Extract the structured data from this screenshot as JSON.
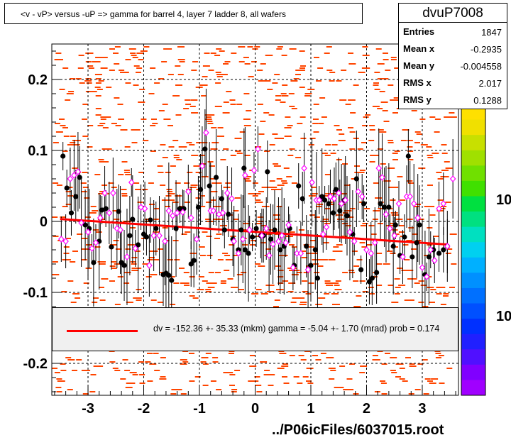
{
  "header": {
    "title": "<v - vP>       versus  -uP =>  gamma for barrel 4, layer 7 ladder 8, all wafers"
  },
  "stats": {
    "name": "dvuP7008",
    "rows": [
      {
        "label": "Entries",
        "value": "1847"
      },
      {
        "label": "Mean x",
        "value": "-0.2935"
      },
      {
        "label": "Mean y",
        "value": "-0.004558"
      },
      {
        "label": "RMS x",
        "value": "2.017"
      },
      {
        "label": "RMS y",
        "value": "0.1288"
      }
    ]
  },
  "legend": {
    "text": "dv = -152.36 +- 35.33 (mkm) gamma =   -5.04 +-  1.70 (mrad) prob = 0.174",
    "line_color": "#ff0000"
  },
  "footer": {
    "filename": "../P06icFiles/6037015.root"
  },
  "colorbar": {
    "labels": [
      "10",
      "10"
    ]
  },
  "colors": {
    "histogram_cells": "#ff4500",
    "profile_black": "#000000",
    "profile_magenta": "#ff00ff",
    "fit_line": "#ff0000",
    "grid": "#000000"
  },
  "chart_data": {
    "type": "scatter",
    "xlim": [
      -3.65,
      3.65
    ],
    "ylim": [
      -0.245,
      0.25
    ],
    "x_ticks": [
      -3,
      -2,
      -1,
      0,
      1,
      2,
      3
    ],
    "y_ticks": [
      -0.2,
      -0.1,
      0,
      0.1,
      0.2
    ],
    "y_tick_labels": [
      "-0.2",
      "-0.1",
      "0",
      "0.1",
      "0.2"
    ],
    "x_tick_labels": [
      "-3",
      "-2",
      "-1",
      "0",
      "1",
      "2",
      "3"
    ],
    "grid": true,
    "fit": {
      "x": [
        -3.5,
        3.45
      ],
      "y": [
        0.0034,
        -0.0325
      ]
    },
    "series": [
      {
        "marker": "filled-circle",
        "points": [
          [
            -3.45,
            0.092
          ],
          [
            -3.38,
            0.047
          ],
          [
            -3.3,
            0.012
          ],
          [
            -3.22,
            0.035
          ],
          [
            -3.15,
            0.062
          ],
          [
            -3.05,
            -0.005
          ],
          [
            -2.98,
            -0.01
          ],
          [
            -2.9,
            -0.058
          ],
          [
            -2.8,
            -0.028
          ],
          [
            -2.75,
            0.016
          ],
          [
            -2.68,
            0.018
          ],
          [
            -2.58,
            -0.036
          ],
          [
            -2.45,
            0.014
          ],
          [
            -2.4,
            -0.058
          ],
          [
            -2.35,
            -0.062
          ],
          [
            -2.25,
            -0.02
          ],
          [
            -2.2,
            0.003
          ],
          [
            -2.1,
            -0.033
          ],
          [
            -2.0,
            -0.018
          ],
          [
            -1.95,
            -0.022
          ],
          [
            -1.88,
            0.002
          ],
          [
            -1.78,
            -0.01
          ],
          [
            -1.65,
            -0.075
          ],
          [
            -1.6,
            -0.073
          ],
          [
            -1.55,
            -0.076
          ],
          [
            -1.5,
            -0.083
          ],
          [
            -1.42,
            -0.01
          ],
          [
            -1.35,
            0.018
          ],
          [
            -1.28,
            0.018
          ],
          [
            -1.15,
            -0.06
          ],
          [
            -1.1,
            -0.055
          ],
          [
            -1.02,
            0.02
          ],
          [
            -0.98,
            0.045
          ],
          [
            -0.9,
            0.102
          ],
          [
            -0.82,
            0.05
          ],
          [
            -0.7,
            0.062
          ],
          [
            -0.6,
            0.032
          ],
          [
            -0.55,
            -0.012
          ],
          [
            -0.48,
            0.01
          ],
          [
            -0.4,
            -0.025
          ],
          [
            -0.3,
            -0.04
          ],
          [
            -0.25,
            -0.012
          ],
          [
            -0.2,
            0.075
          ],
          [
            -0.18,
            -0.04
          ],
          [
            -0.12,
            -0.045
          ],
          [
            -0.05,
            -0.022
          ],
          [
            0.02,
            -0.01
          ],
          [
            0.1,
            -0.02
          ],
          [
            0.15,
            -0.02
          ],
          [
            0.22,
            0.07
          ],
          [
            0.28,
            -0.025
          ],
          [
            0.35,
            -0.012
          ],
          [
            0.45,
            -0.04
          ],
          [
            0.52,
            -0.035
          ],
          [
            0.62,
            -0.01
          ],
          [
            0.7,
            -0.062
          ],
          [
            0.78,
            0.05
          ],
          [
            0.85,
            0.032
          ],
          [
            0.92,
            -0.035
          ],
          [
            1.0,
            -0.062
          ],
          [
            1.08,
            -0.04
          ],
          [
            1.12,
            -0.08
          ],
          [
            1.2,
            0.035
          ],
          [
            1.25,
            0.03
          ],
          [
            1.32,
            0.025
          ],
          [
            1.4,
            0.012
          ],
          [
            1.45,
            0.045
          ],
          [
            1.52,
            0.015
          ],
          [
            1.6,
            0.03
          ],
          [
            1.65,
            0.008
          ],
          [
            1.75,
            -0.018
          ],
          [
            1.82,
            0.06
          ],
          [
            1.9,
            -0.068
          ],
          [
            1.95,
            0.025
          ],
          [
            2.05,
            -0.085
          ],
          [
            2.1,
            -0.08
          ],
          [
            2.18,
            -0.072
          ],
          [
            2.25,
            0.025
          ],
          [
            2.32,
            0.02
          ],
          [
            2.4,
            0.02
          ],
          [
            2.48,
            -0.035
          ],
          [
            2.52,
            -0.005
          ],
          [
            2.6,
            -0.048
          ],
          [
            2.68,
            -0.022
          ],
          [
            2.75,
            0.092
          ],
          [
            2.82,
            -0.05
          ],
          [
            2.9,
            -0.03
          ],
          [
            2.95,
            -0.005
          ],
          [
            3.05,
            -0.075
          ],
          [
            3.12,
            -0.05
          ],
          [
            3.2,
            -0.04
          ],
          [
            3.3,
            -0.045
          ],
          [
            3.38,
            -0.04
          ],
          [
            3.45,
            -0.035
          ]
        ]
      },
      {
        "marker": "open-diamond",
        "points": [
          [
            -3.48,
            -0.025
          ],
          [
            -3.4,
            -0.028
          ],
          [
            -3.32,
            0.06
          ],
          [
            -3.25,
            0.065
          ],
          [
            -3.18,
            0.07
          ],
          [
            -3.12,
            -0.002
          ],
          [
            -3.0,
            -0.015
          ],
          [
            -2.93,
            -0.038
          ],
          [
            -2.86,
            -0.03
          ],
          [
            -2.78,
            0.005
          ],
          [
            -2.7,
            0.04
          ],
          [
            -2.62,
            0.012
          ],
          [
            -2.55,
            0.04
          ],
          [
            -2.48,
            -0.01
          ],
          [
            -2.42,
            -0.012
          ],
          [
            -2.3,
            -0.05
          ],
          [
            -2.22,
            0.055
          ],
          [
            -2.15,
            -0.038
          ],
          [
            -2.05,
            0.02
          ],
          [
            -1.98,
            0.018
          ],
          [
            -1.9,
            -0.062
          ],
          [
            -1.82,
            -0.02
          ],
          [
            -1.72,
            -0.02
          ],
          [
            -1.62,
            -0.028
          ],
          [
            -1.55,
            0.015
          ],
          [
            -1.48,
            0.008
          ],
          [
            -1.4,
            0.012
          ],
          [
            -1.3,
            0.013
          ],
          [
            -1.2,
            0.042
          ],
          [
            -1.15,
            0.005
          ],
          [
            -1.05,
            -0.025
          ],
          [
            -0.95,
            0.078
          ],
          [
            -0.88,
            0.125
          ],
          [
            -0.8,
            0.015
          ],
          [
            -0.75,
            0.015
          ],
          [
            -0.65,
            0.01
          ],
          [
            -0.58,
            0.012
          ],
          [
            -0.5,
            0.04
          ],
          [
            -0.42,
            0.032
          ],
          [
            -0.38,
            -0.028
          ],
          [
            -0.3,
            -0.045
          ],
          [
            -0.22,
            -0.025
          ],
          [
            -0.18,
            0.065
          ],
          [
            -0.1,
            -0.012
          ],
          [
            -0.02,
            0.072
          ],
          [
            0.05,
            0.102
          ],
          [
            0.12,
            -0.02
          ],
          [
            0.2,
            -0.01
          ],
          [
            0.25,
            -0.048
          ],
          [
            0.32,
            -0.032
          ],
          [
            0.42,
            -0.028
          ],
          [
            0.48,
            -0.02
          ],
          [
            0.55,
            -0.03
          ],
          [
            0.6,
            -0.005
          ],
          [
            0.68,
            -0.065
          ],
          [
            0.75,
            -0.045
          ],
          [
            0.82,
            -0.045
          ],
          [
            0.88,
            0.075
          ],
          [
            0.95,
            -0.068
          ],
          [
            1.02,
            0.055
          ],
          [
            1.1,
            0.03
          ],
          [
            1.15,
            0.03
          ],
          [
            1.22,
            -0.018
          ],
          [
            1.28,
            -0.008
          ],
          [
            1.35,
            0.035
          ],
          [
            1.42,
            0.032
          ],
          [
            1.5,
            0.04
          ],
          [
            1.55,
            0.025
          ],
          [
            1.62,
            0.03
          ],
          [
            1.7,
            -0.015
          ],
          [
            1.78,
            -0.028
          ],
          [
            1.85,
            0.042
          ],
          [
            1.92,
            0.035
          ],
          [
            2.0,
            -0.04
          ],
          [
            2.08,
            -0.045
          ],
          [
            2.15,
            -0.03
          ],
          [
            2.22,
            0.075
          ],
          [
            2.28,
            0.062
          ],
          [
            2.35,
            0.01
          ],
          [
            2.42,
            -0.01
          ],
          [
            2.5,
            -0.02
          ],
          [
            2.58,
            0.025
          ],
          [
            2.65,
            -0.05
          ],
          [
            2.72,
            0.035
          ],
          [
            2.78,
            0.035
          ],
          [
            2.85,
            0.025
          ],
          [
            2.92,
            0.005
          ],
          [
            3.0,
            -0.065
          ],
          [
            3.08,
            -0.078
          ],
          [
            3.15,
            -0.04
          ],
          [
            3.22,
            -0.055
          ],
          [
            3.3,
            0.018
          ],
          [
            3.38,
            0.025
          ],
          [
            3.45,
            -0.035
          ],
          [
            3.55,
            0.06
          ]
        ]
      }
    ]
  }
}
